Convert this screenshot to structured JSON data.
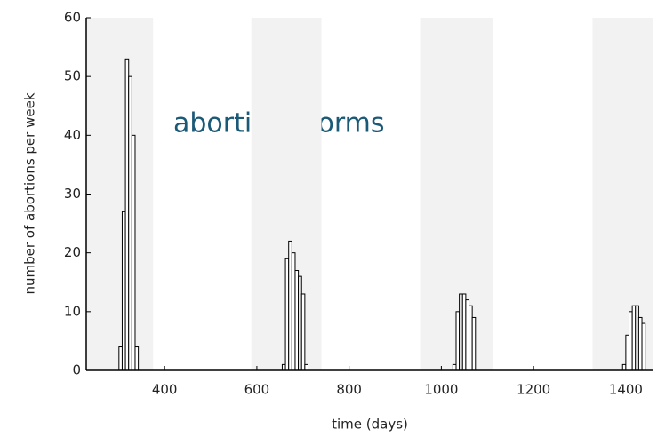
{
  "chart_data": {
    "type": "histogram",
    "annotation": "abortion storms",
    "xlabel": "time (days)",
    "ylabel": "number of abortions per week",
    "xlim": [
      230,
      1460
    ],
    "ylim": [
      0,
      60
    ],
    "xticks": [
      400,
      600,
      800,
      1000,
      1200,
      1400
    ],
    "yticks": [
      0,
      10,
      20,
      30,
      40,
      50,
      60
    ],
    "shaded_ranges": [
      [
        230,
        375
      ],
      [
        588,
        740
      ],
      [
        954,
        1112
      ],
      [
        1328,
        1460
      ]
    ],
    "shade_color": "#f2f2f2",
    "color": "#ffffff",
    "edge_color": "#000000",
    "series": [
      {
        "bins": [
          301,
          308,
          315,
          322,
          329,
          336,
          343
        ],
        "values": [
          4,
          27,
          53,
          50,
          40,
          4
        ]
      },
      {
        "bins": [
          655,
          662,
          669,
          676,
          683,
          690,
          697,
          704,
          711
        ],
        "values": [
          1,
          19,
          22,
          20,
          17,
          16,
          13,
          1
        ]
      },
      {
        "bins": [
          1025,
          1032,
          1039,
          1046,
          1053,
          1060,
          1067,
          1074
        ],
        "values": [
          1,
          10,
          13,
          13,
          12,
          11,
          9
        ]
      },
      {
        "bins": [
          1393,
          1400,
          1407,
          1414,
          1421,
          1428,
          1435,
          1442
        ],
        "values": [
          1,
          6,
          10,
          11,
          11,
          9,
          8
        ]
      }
    ]
  }
}
